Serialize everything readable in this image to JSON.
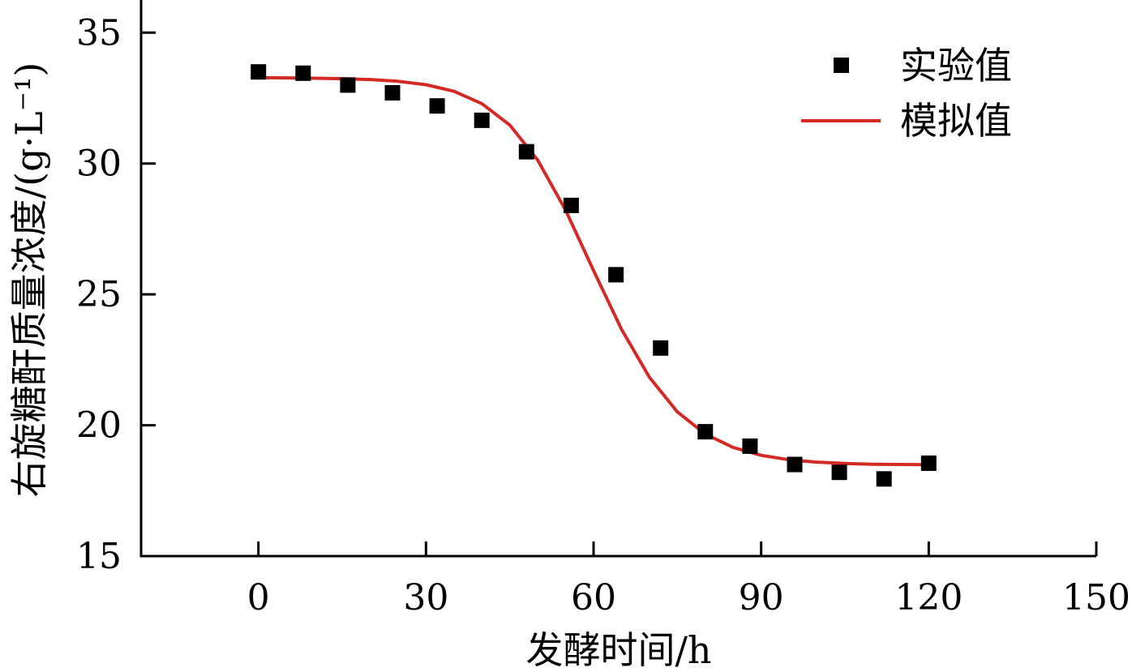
{
  "chart_data": {
    "type": "scatter",
    "xlabel": "发酵时间/h",
    "ylabel": "右旋糖酐质量浓度/(g·L⁻¹)",
    "xlim": [
      -21,
      150
    ],
    "ylim": [
      15,
      36
    ],
    "xticks": [
      0,
      30,
      60,
      90,
      120,
      150
    ],
    "yticks": [
      15,
      20,
      25,
      30,
      35
    ],
    "xtick_labels": [
      "0",
      "30",
      "60",
      "90",
      "120",
      "150"
    ],
    "ytick_labels": [
      "15",
      "20",
      "25",
      "30",
      "35"
    ],
    "grid": false,
    "legend_position": "top-right",
    "series": [
      {
        "name": "实验值",
        "kind": "scatter",
        "marker": "square",
        "color": "#000000",
        "x": [
          0,
          8,
          16,
          24,
          32,
          40,
          48,
          56,
          64,
          72,
          80,
          88,
          96,
          104,
          112,
          120
        ],
        "y": [
          33.5,
          33.45,
          33.0,
          32.7,
          32.2,
          31.65,
          30.45,
          28.4,
          25.75,
          22.95,
          19.75,
          19.2,
          18.5,
          18.2,
          17.95,
          18.55
        ]
      },
      {
        "name": "模拟值",
        "kind": "line",
        "color": "#d42a26",
        "x": [
          0,
          5,
          10,
          15,
          20,
          25,
          30,
          35,
          40,
          45,
          50,
          55,
          60,
          65,
          70,
          75,
          80,
          85,
          90,
          95,
          100,
          105,
          110,
          115,
          120
        ],
        "y": [
          33.28,
          33.27,
          33.26,
          33.24,
          33.21,
          33.14,
          33.01,
          32.76,
          32.29,
          31.47,
          30.13,
          28.21,
          25.91,
          23.67,
          21.83,
          20.51,
          19.66,
          19.15,
          18.85,
          18.68,
          18.59,
          18.54,
          18.51,
          18.5,
          18.49
        ]
      }
    ]
  }
}
